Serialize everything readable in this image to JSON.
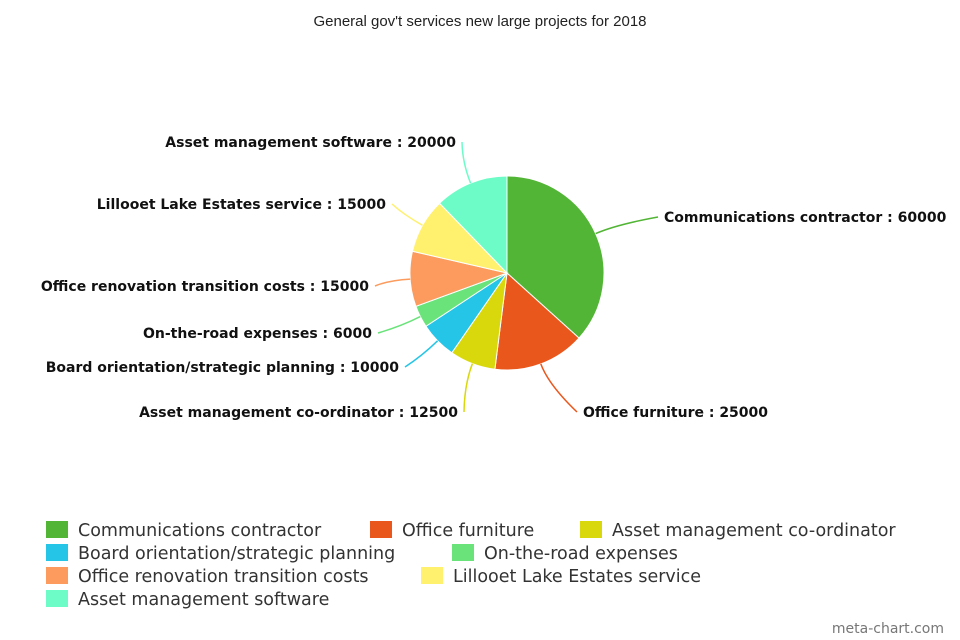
{
  "chart_data": {
    "type": "pie",
    "title": "General gov't services new large projects for 2018",
    "label_separator": " : ",
    "legend_position": "bottom",
    "slices": [
      {
        "label": "Communications contractor",
        "value": 60000,
        "color": "#52b535"
      },
      {
        "label": "Office furniture",
        "value": 25000,
        "color": "#ea571d"
      },
      {
        "label": "Asset management co-ordinator",
        "value": 12500,
        "color": "#d9d80c"
      },
      {
        "label": "Board orientation/strategic planning",
        "value": 10000,
        "color": "#24c5e6"
      },
      {
        "label": "On-the-road expenses",
        "value": 6000,
        "color": "#6be37b"
      },
      {
        "label": "Office renovation transition costs",
        "value": 15000,
        "color": "#fc9b5d"
      },
      {
        "label": "Lillooet Lake Estates service",
        "value": 15000,
        "color": "#fff06e"
      },
      {
        "label": "Asset management software",
        "value": 20000,
        "color": "#6dfcc7"
      }
    ]
  },
  "watermark": "meta-chart.com"
}
